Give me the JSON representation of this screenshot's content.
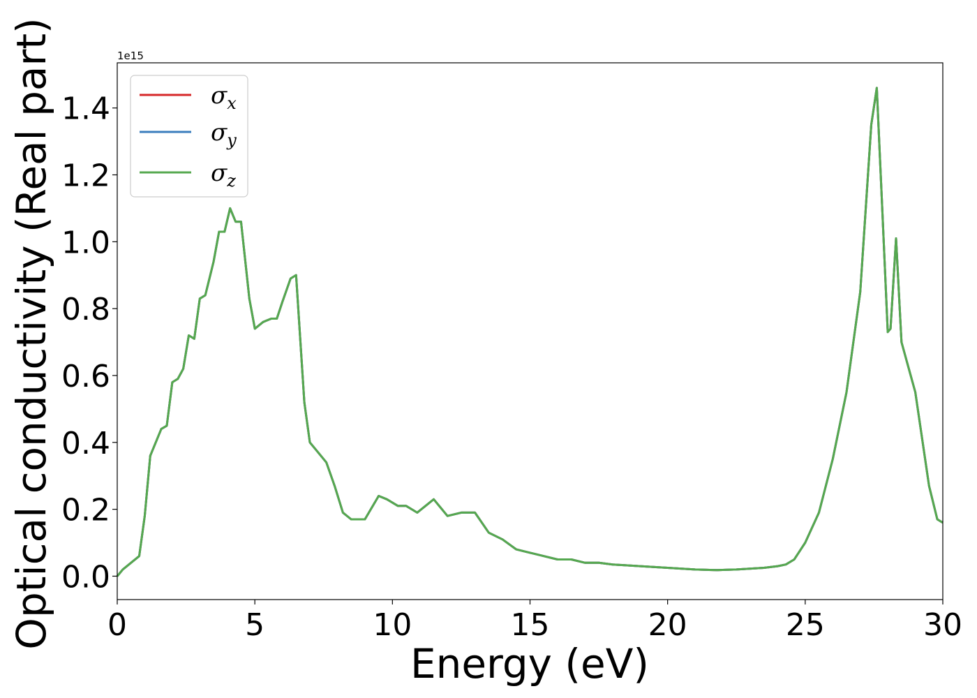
{
  "chart_data": {
    "type": "line",
    "xlabel": "Energy (eV)",
    "ylabel": "Optical conductivity (Real part)",
    "y_offset_label": "1e15",
    "xlim": [
      0,
      30
    ],
    "ylim": [
      -0.07,
      1.535
    ],
    "x_ticks": [
      0,
      5,
      10,
      15,
      20,
      25,
      30
    ],
    "x_tick_labels": [
      "0",
      "5",
      "10",
      "15",
      "20",
      "25",
      "30"
    ],
    "y_ticks": [
      0.0,
      0.2,
      0.4,
      0.6,
      0.8,
      1.0,
      1.2,
      1.4
    ],
    "y_tick_labels": [
      "0.0",
      "0.2",
      "0.4",
      "0.6",
      "0.8",
      "1.0",
      "1.2",
      "1.4"
    ],
    "grid": false,
    "legend_position": "upper-left",
    "x": [
      0,
      0.2,
      0.5,
      0.8,
      1.0,
      1.2,
      1.4,
      1.6,
      1.8,
      2.0,
      2.2,
      2.4,
      2.6,
      2.8,
      3.0,
      3.2,
      3.5,
      3.7,
      3.9,
      4.1,
      4.3,
      4.5,
      4.8,
      5.0,
      5.3,
      5.6,
      5.8,
      6.0,
      6.3,
      6.5,
      6.8,
      7.0,
      7.3,
      7.6,
      7.9,
      8.2,
      8.5,
      9.0,
      9.5,
      9.8,
      10.2,
      10.5,
      10.9,
      11.5,
      12.0,
      12.5,
      13.0,
      13.5,
      14.0,
      14.5,
      15.0,
      15.5,
      16.0,
      16.5,
      17.0,
      17.5,
      18.0,
      19.0,
      20.0,
      21.0,
      21.8,
      22.5,
      23.5,
      24.0,
      24.3,
      24.6,
      25.0,
      25.5,
      26.0,
      26.5,
      27.0,
      27.4,
      27.6,
      27.8,
      28.0,
      28.1,
      28.3,
      28.5,
      28.7,
      29.0,
      29.5,
      29.8,
      30.0
    ],
    "series": [
      {
        "name": "σx",
        "color": "#d62728",
        "values": [
          0.0,
          0.02,
          0.04,
          0.06,
          0.18,
          0.36,
          0.4,
          0.44,
          0.45,
          0.58,
          0.59,
          0.62,
          0.72,
          0.71,
          0.83,
          0.84,
          0.94,
          1.03,
          1.03,
          1.1,
          1.06,
          1.06,
          0.83,
          0.74,
          0.76,
          0.77,
          0.77,
          0.82,
          0.89,
          0.9,
          0.52,
          0.4,
          0.37,
          0.34,
          0.27,
          0.19,
          0.17,
          0.17,
          0.24,
          0.23,
          0.21,
          0.21,
          0.19,
          0.23,
          0.18,
          0.19,
          0.19,
          0.13,
          0.11,
          0.08,
          0.07,
          0.06,
          0.05,
          0.05,
          0.04,
          0.04,
          0.035,
          0.03,
          0.025,
          0.02,
          0.018,
          0.02,
          0.025,
          0.03,
          0.035,
          0.05,
          0.1,
          0.19,
          0.35,
          0.55,
          0.85,
          1.35,
          1.46,
          1.1,
          0.73,
          0.74,
          1.01,
          0.7,
          0.64,
          0.55,
          0.27,
          0.17,
          0.16
        ]
      },
      {
        "name": "σy",
        "color": "#3a7dbd",
        "values": [
          0.0,
          0.02,
          0.04,
          0.06,
          0.18,
          0.36,
          0.4,
          0.44,
          0.45,
          0.58,
          0.59,
          0.62,
          0.72,
          0.71,
          0.83,
          0.84,
          0.94,
          1.03,
          1.03,
          1.1,
          1.06,
          1.06,
          0.83,
          0.74,
          0.76,
          0.77,
          0.77,
          0.82,
          0.89,
          0.9,
          0.52,
          0.4,
          0.37,
          0.34,
          0.27,
          0.19,
          0.17,
          0.17,
          0.24,
          0.23,
          0.21,
          0.21,
          0.19,
          0.23,
          0.18,
          0.19,
          0.19,
          0.13,
          0.11,
          0.08,
          0.07,
          0.06,
          0.05,
          0.05,
          0.04,
          0.04,
          0.035,
          0.03,
          0.025,
          0.02,
          0.018,
          0.02,
          0.025,
          0.03,
          0.035,
          0.05,
          0.1,
          0.19,
          0.35,
          0.55,
          0.85,
          1.35,
          1.46,
          1.1,
          0.73,
          0.74,
          1.01,
          0.7,
          0.64,
          0.55,
          0.27,
          0.17,
          0.16
        ]
      },
      {
        "name": "σz",
        "color": "#55a84f",
        "values": [
          0.0,
          0.02,
          0.04,
          0.06,
          0.18,
          0.36,
          0.4,
          0.44,
          0.45,
          0.58,
          0.59,
          0.62,
          0.72,
          0.71,
          0.83,
          0.84,
          0.94,
          1.03,
          1.03,
          1.1,
          1.06,
          1.06,
          0.83,
          0.74,
          0.76,
          0.77,
          0.77,
          0.82,
          0.89,
          0.9,
          0.52,
          0.4,
          0.37,
          0.34,
          0.27,
          0.19,
          0.17,
          0.17,
          0.24,
          0.23,
          0.21,
          0.21,
          0.19,
          0.23,
          0.18,
          0.19,
          0.19,
          0.13,
          0.11,
          0.08,
          0.07,
          0.06,
          0.05,
          0.05,
          0.04,
          0.04,
          0.035,
          0.03,
          0.025,
          0.02,
          0.018,
          0.02,
          0.025,
          0.03,
          0.035,
          0.05,
          0.1,
          0.19,
          0.35,
          0.55,
          0.85,
          1.35,
          1.46,
          1.1,
          0.73,
          0.74,
          1.01,
          0.7,
          0.64,
          0.55,
          0.27,
          0.17,
          0.16
        ]
      }
    ],
    "legend": [
      {
        "symbol": "σ",
        "sub": "x",
        "color": "#d62728"
      },
      {
        "symbol": "σ",
        "sub": "y",
        "color": "#3a7dbd"
      },
      {
        "symbol": "σ",
        "sub": "z",
        "color": "#55a84f"
      }
    ]
  }
}
